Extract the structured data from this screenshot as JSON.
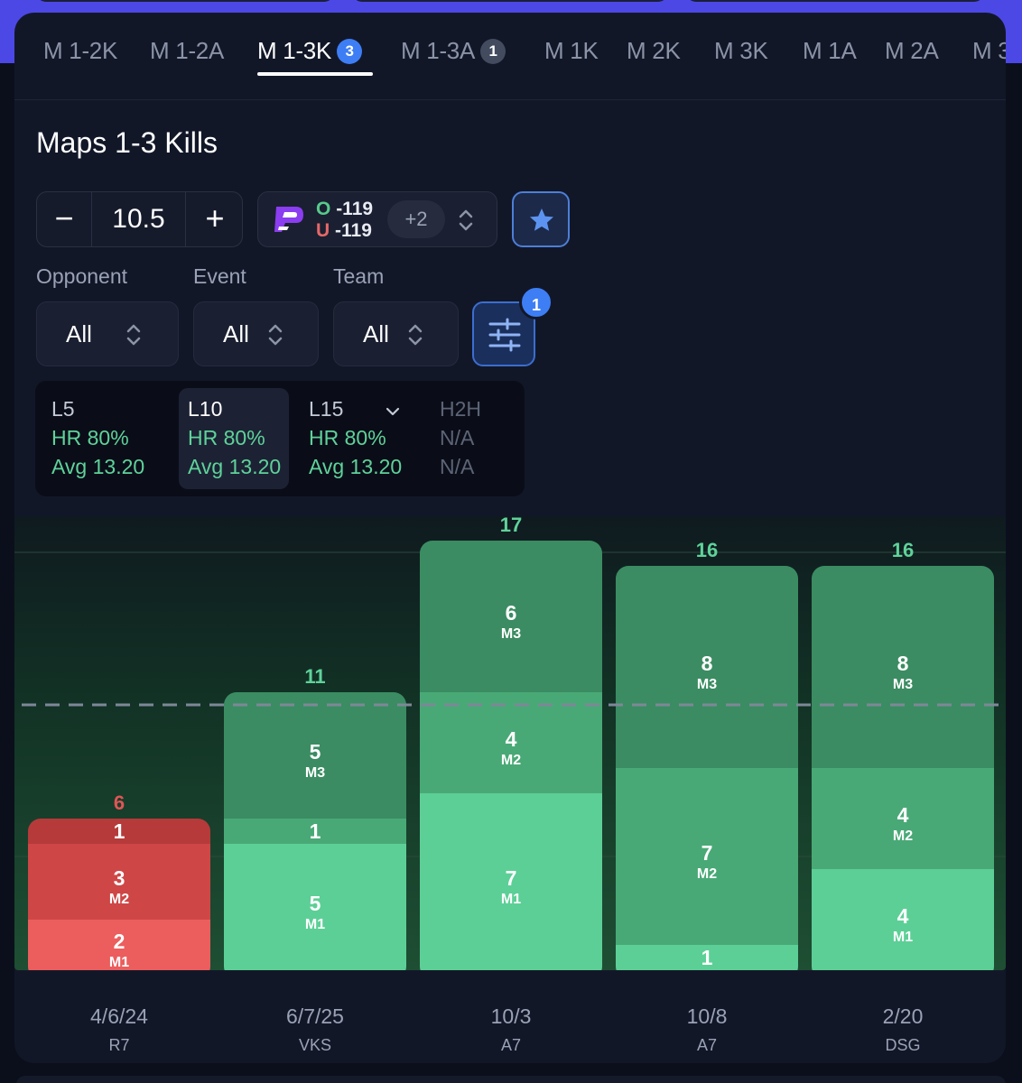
{
  "tabs": [
    {
      "label": "M 1-2K",
      "badge": null,
      "active": false
    },
    {
      "label": "M 1-2A",
      "badge": null,
      "active": false
    },
    {
      "label": "M 1-3K",
      "badge": "3",
      "active": true
    },
    {
      "label": "M 1-3A",
      "badge": "1",
      "active": false
    },
    {
      "label": "M 1K",
      "badge": null,
      "active": false
    },
    {
      "label": "M 2K",
      "badge": null,
      "active": false
    },
    {
      "label": "M 3K",
      "badge": null,
      "active": false
    },
    {
      "label": "M 1A",
      "badge": null,
      "active": false
    },
    {
      "label": "M 2A",
      "badge": null,
      "active": false
    },
    {
      "label": "M 3",
      "badge": null,
      "active": false
    }
  ],
  "title": "Maps 1-3 Kills",
  "line": {
    "minus": "−",
    "value": "10.5",
    "plus": "+"
  },
  "odds": {
    "over_letter": "O",
    "over_value": "-119",
    "under_letter": "U",
    "under_value": "-119",
    "more": "+2",
    "brand_color": "#8b3df0"
  },
  "filters": [
    {
      "label": "Opponent",
      "value": "All"
    },
    {
      "label": "Event",
      "value": "All"
    },
    {
      "label": "Team",
      "value": "All"
    }
  ],
  "filter_badge": "1",
  "stats": [
    {
      "label": "L5",
      "hr": "HR 80%",
      "avg": "Avg 13.20",
      "active": false,
      "muted": false
    },
    {
      "label": "L10",
      "hr": "HR 80%",
      "avg": "Avg 13.20",
      "active": true,
      "muted": false
    },
    {
      "label": "L15",
      "hr": "HR 80%",
      "avg": "Avg 13.20",
      "active": false,
      "muted": false,
      "dropdown": true
    },
    {
      "label": "H2H",
      "hr": "N/A",
      "avg": "N/A",
      "active": false,
      "muted": true
    }
  ],
  "colors": {
    "hit": "#5fd29a",
    "miss": "#e05555",
    "accent": "#3d7ef5"
  },
  "chart_data": {
    "type": "bar",
    "stacked": true,
    "line": 10.5,
    "ylim": [
      0,
      18
    ],
    "categories": [
      {
        "date": "4/6/24",
        "opponent": "R7"
      },
      {
        "date": "6/7/25",
        "opponent": "VKS"
      },
      {
        "date": "10/3",
        "opponent": "A7"
      },
      {
        "date": "10/8",
        "opponent": "A7"
      },
      {
        "date": "2/20",
        "opponent": "DSG"
      }
    ],
    "totals": [
      6,
      11,
      17,
      16,
      16
    ],
    "series": [
      {
        "name": "M1",
        "values": [
          2,
          5,
          7,
          1,
          4
        ]
      },
      {
        "name": "M2",
        "values": [
          3,
          1,
          4,
          7,
          4
        ]
      },
      {
        "name": "M3",
        "values": [
          1,
          5,
          6,
          8,
          8
        ]
      }
    ]
  }
}
